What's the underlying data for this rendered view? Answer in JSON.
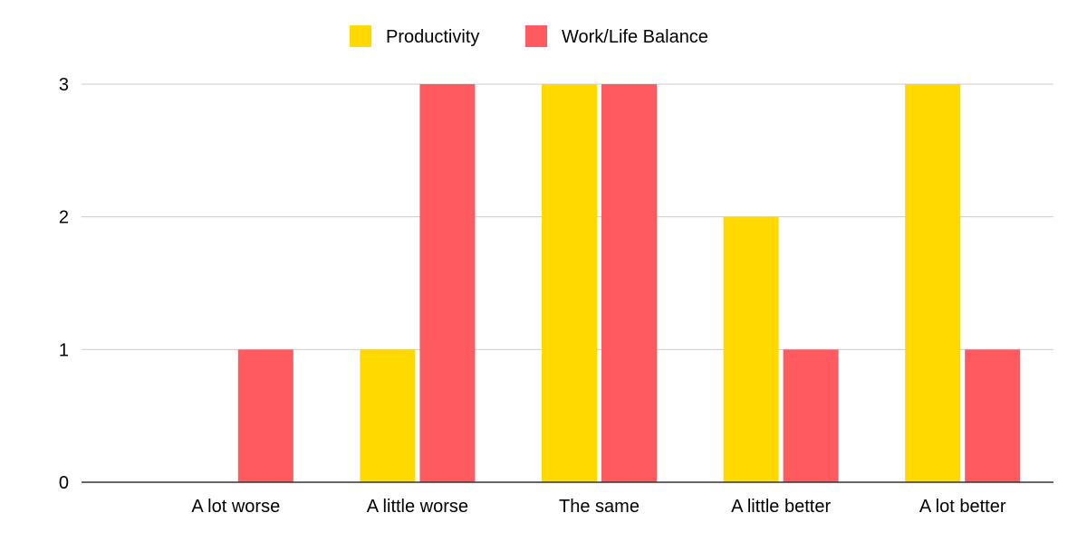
{
  "chart_data": {
    "type": "bar",
    "title": "",
    "xlabel": "",
    "ylabel": "",
    "categories": [
      "A lot worse",
      "A little worse",
      "The same",
      "A little better",
      "A lot better"
    ],
    "series": [
      {
        "name": "Productivity",
        "color": "#FFD900",
        "values": [
          0,
          1,
          3,
          2,
          3
        ]
      },
      {
        "name": "Work/Life Balance",
        "color": "#FF5A5F",
        "values": [
          1,
          3,
          3,
          1,
          1
        ]
      }
    ],
    "ylim": [
      0,
      3
    ],
    "yticks": [
      0,
      1,
      2,
      3
    ],
    "grid": true,
    "legend_position": "top-center"
  }
}
